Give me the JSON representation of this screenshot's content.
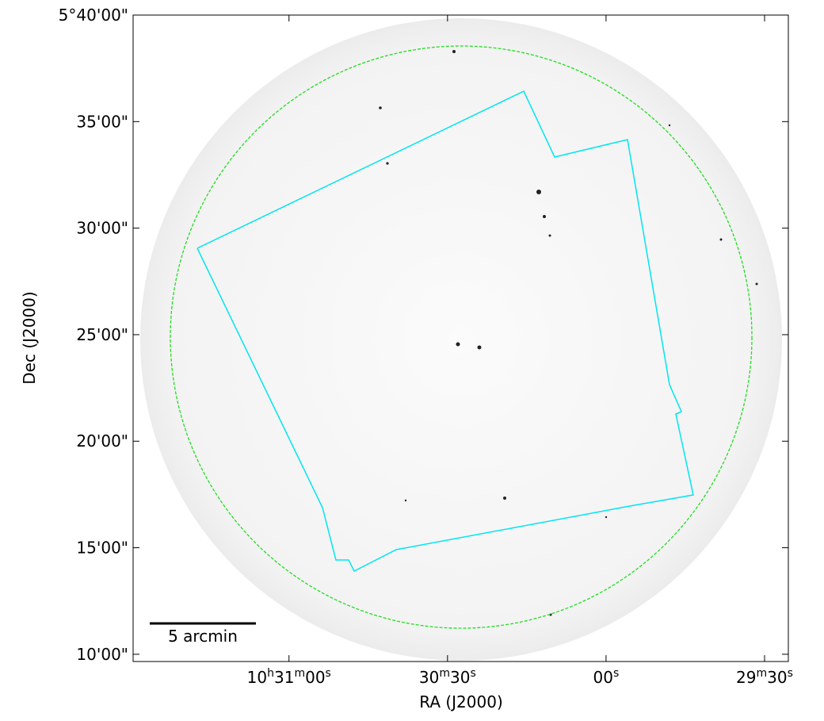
{
  "chart_data": {
    "type": "image",
    "xlabel": "RA (J2000)",
    "ylabel": "Dec (J2000)",
    "xlim": [
      149.5,
      25.5
    ],
    "ylim": [
      9.66,
      40
    ],
    "xticks": [
      {
        "value": 120,
        "label": "10h31m00s"
      },
      {
        "value": 90,
        "label": "30m30s"
      },
      {
        "value": 60,
        "label": "00s"
      },
      {
        "value": 30,
        "label": "29m30s"
      }
    ],
    "yticks": [
      {
        "value": 10,
        "label": "10'00\""
      },
      {
        "value": 15,
        "label": "15'00\""
      },
      {
        "value": 20,
        "label": "20'00\""
      },
      {
        "value": 25,
        "label": "25'00\""
      },
      {
        "value": 30,
        "label": "30'00\""
      },
      {
        "value": 35,
        "label": "35'00\""
      },
      {
        "value": 40,
        "label": "5°40'00\""
      }
    ],
    "scalebar_label": "5 arcmin"
  }
}
